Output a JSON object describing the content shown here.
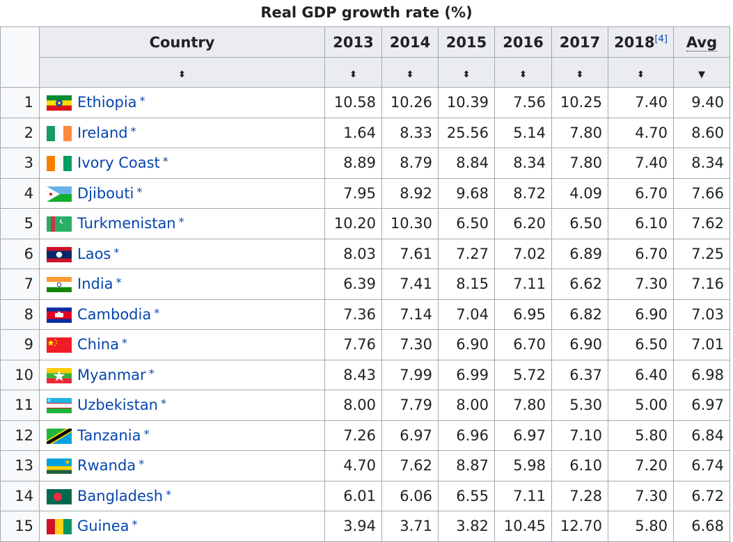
{
  "caption": "Real GDP growth rate (%)",
  "headers": {
    "country": "Country",
    "years": [
      "2013",
      "2014",
      "2015",
      "2016",
      "2017",
      "2018"
    ],
    "ref": "[4]",
    "avg": "Avg",
    "sort_icon": "⬍",
    "sort_desc_icon": "▼"
  },
  "star": "*",
  "rows": [
    {
      "rank": "1",
      "country": "Ethiopia",
      "flag": "ethiopia-flag-icon",
      "values": [
        "10.58",
        "10.26",
        "10.39",
        "7.56",
        "10.25",
        "7.40",
        "9.40"
      ]
    },
    {
      "rank": "2",
      "country": "Ireland",
      "flag": "ireland-flag-icon",
      "values": [
        "1.64",
        "8.33",
        "25.56",
        "5.14",
        "7.80",
        "4.70",
        "8.60"
      ]
    },
    {
      "rank": "3",
      "country": "Ivory Coast",
      "flag": "ivory-coast-flag-icon",
      "values": [
        "8.89",
        "8.79",
        "8.84",
        "8.34",
        "7.80",
        "7.40",
        "8.34"
      ]
    },
    {
      "rank": "4",
      "country": "Djibouti",
      "flag": "djibouti-flag-icon",
      "values": [
        "7.95",
        "8.92",
        "9.68",
        "8.72",
        "4.09",
        "6.70",
        "7.66"
      ]
    },
    {
      "rank": "5",
      "country": "Turkmenistan",
      "flag": "turkmenistan-flag-icon",
      "values": [
        "10.20",
        "10.30",
        "6.50",
        "6.20",
        "6.50",
        "6.10",
        "7.62"
      ]
    },
    {
      "rank": "6",
      "country": "Laos",
      "flag": "laos-flag-icon",
      "values": [
        "8.03",
        "7.61",
        "7.27",
        "7.02",
        "6.89",
        "6.70",
        "7.25"
      ]
    },
    {
      "rank": "7",
      "country": "India",
      "flag": "india-flag-icon",
      "values": [
        "6.39",
        "7.41",
        "8.15",
        "7.11",
        "6.62",
        "7.30",
        "7.16"
      ]
    },
    {
      "rank": "8",
      "country": "Cambodia",
      "flag": "cambodia-flag-icon",
      "values": [
        "7.36",
        "7.14",
        "7.04",
        "6.95",
        "6.82",
        "6.90",
        "7.03"
      ]
    },
    {
      "rank": "9",
      "country": "China",
      "flag": "china-flag-icon",
      "values": [
        "7.76",
        "7.30",
        "6.90",
        "6.70",
        "6.90",
        "6.50",
        "7.01"
      ]
    },
    {
      "rank": "10",
      "country": "Myanmar",
      "flag": "myanmar-flag-icon",
      "values": [
        "8.43",
        "7.99",
        "6.99",
        "5.72",
        "6.37",
        "6.40",
        "6.98"
      ]
    },
    {
      "rank": "11",
      "country": "Uzbekistan",
      "flag": "uzbekistan-flag-icon",
      "values": [
        "8.00",
        "7.79",
        "8.00",
        "7.80",
        "5.30",
        "5.00",
        "6.97"
      ]
    },
    {
      "rank": "12",
      "country": "Tanzania",
      "flag": "tanzania-flag-icon",
      "values": [
        "7.26",
        "6.97",
        "6.96",
        "6.97",
        "7.10",
        "5.80",
        "6.84"
      ]
    },
    {
      "rank": "13",
      "country": "Rwanda",
      "flag": "rwanda-flag-icon",
      "values": [
        "4.70",
        "7.62",
        "8.87",
        "5.98",
        "6.10",
        "7.20",
        "6.74"
      ]
    },
    {
      "rank": "14",
      "country": "Bangladesh",
      "flag": "bangladesh-flag-icon",
      "values": [
        "6.01",
        "6.06",
        "6.55",
        "7.11",
        "7.28",
        "7.30",
        "6.72"
      ]
    },
    {
      "rank": "15",
      "country": "Guinea",
      "flag": "guinea-flag-icon",
      "values": [
        "3.94",
        "3.71",
        "3.82",
        "10.45",
        "12.70",
        "5.80",
        "6.68"
      ]
    }
  ],
  "colors": {
    "link": "#0645ad",
    "header_bg": "#eaecf0",
    "border": "#a2a9b1"
  }
}
